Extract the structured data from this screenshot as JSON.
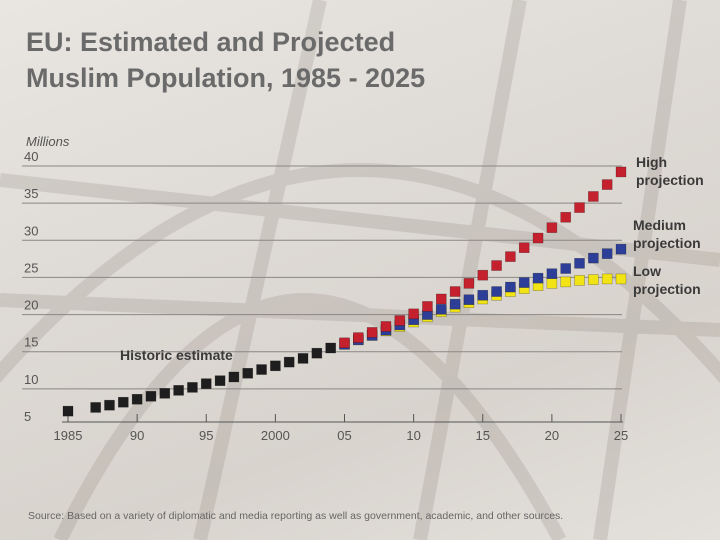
{
  "title_line1": "EU: Estimated and Projected",
  "title_line2": "Muslim Population, 1985 - 2025",
  "source": "Source: Based on a variety of diplomatic and media reporting as well as government, academic, and other sources.",
  "colors": {
    "historic": "#1e1e1e",
    "high": "#c4202e",
    "medium": "#2c3e98",
    "low": "#f2e414"
  },
  "chart_data": {
    "type": "scatter",
    "title": "EU: Estimated and Projected Muslim Population, 1985 - 2025",
    "ylabel": "Millions",
    "ylim": [
      5,
      40
    ],
    "yticks": [
      5,
      10,
      15,
      20,
      25,
      30,
      35,
      40
    ],
    "ytick_labels": [
      "5",
      "10",
      "15",
      "20",
      "25",
      "30",
      "35",
      "40"
    ],
    "xlim": [
      1985,
      2025
    ],
    "xticks": [
      1985,
      1990,
      1995,
      2000,
      2005,
      2010,
      2015,
      2020,
      2025
    ],
    "xtick_labels": [
      "1985",
      "90",
      "95",
      "2000",
      "05",
      "10",
      "15",
      "20",
      "25"
    ],
    "grid": true,
    "series": [
      {
        "key": "historic",
        "name": "Historic estimate",
        "x": [
          1985,
          1987,
          1988,
          1989,
          1990,
          1991,
          1992,
          1993,
          1994,
          1995,
          1996,
          1997,
          1998,
          1999,
          2000,
          2001,
          2002,
          2003,
          2004
        ],
        "values": [
          7.0,
          7.5,
          7.8,
          8.2,
          8.6,
          9.0,
          9.4,
          9.8,
          10.2,
          10.7,
          11.1,
          11.6,
          12.1,
          12.6,
          13.1,
          13.6,
          14.1,
          14.8,
          15.5
        ]
      },
      {
        "key": "low",
        "name": "Low projection",
        "x": [
          2005,
          2006,
          2007,
          2008,
          2009,
          2010,
          2011,
          2012,
          2013,
          2014,
          2015,
          2016,
          2017,
          2018,
          2019,
          2020,
          2021,
          2022,
          2023,
          2024,
          2025
        ],
        "values": [
          16.0,
          16.6,
          17.2,
          17.8,
          18.4,
          19.0,
          19.7,
          20.4,
          21.0,
          21.6,
          22.1,
          22.6,
          23.1,
          23.5,
          23.9,
          24.2,
          24.4,
          24.6,
          24.7,
          24.8,
          24.8
        ]
      },
      {
        "key": "medium",
        "name": "Medium projection",
        "x": [
          2005,
          2006,
          2007,
          2008,
          2009,
          2010,
          2011,
          2012,
          2013,
          2014,
          2015,
          2016,
          2017,
          2018,
          2019,
          2020,
          2021,
          2022,
          2023,
          2024,
          2025
        ],
        "values": [
          16.0,
          16.6,
          17.2,
          17.9,
          18.6,
          19.3,
          20.0,
          20.7,
          21.4,
          22.0,
          22.6,
          23.1,
          23.7,
          24.3,
          24.9,
          25.5,
          26.2,
          26.9,
          27.6,
          28.2,
          28.8
        ]
      },
      {
        "key": "high",
        "name": "High projection",
        "x": [
          2005,
          2006,
          2007,
          2008,
          2009,
          2010,
          2011,
          2012,
          2013,
          2014,
          2015,
          2016,
          2017,
          2018,
          2019,
          2020,
          2021,
          2022,
          2023,
          2024,
          2025
        ],
        "values": [
          16.2,
          16.9,
          17.6,
          18.4,
          19.2,
          20.1,
          21.1,
          22.1,
          23.1,
          24.2,
          25.3,
          26.6,
          27.8,
          29.0,
          30.3,
          31.7,
          33.1,
          34.4,
          35.9,
          37.5,
          39.2
        ]
      }
    ],
    "annotations": [
      {
        "key": "high",
        "text_lines": [
          "High",
          "projection"
        ]
      },
      {
        "key": "medium",
        "text_lines": [
          "Medium",
          "projection"
        ]
      },
      {
        "key": "low",
        "text_lines": [
          "Low",
          "projection"
        ]
      },
      {
        "key": "historic",
        "text_lines": [
          "Historic estimate"
        ]
      }
    ]
  }
}
